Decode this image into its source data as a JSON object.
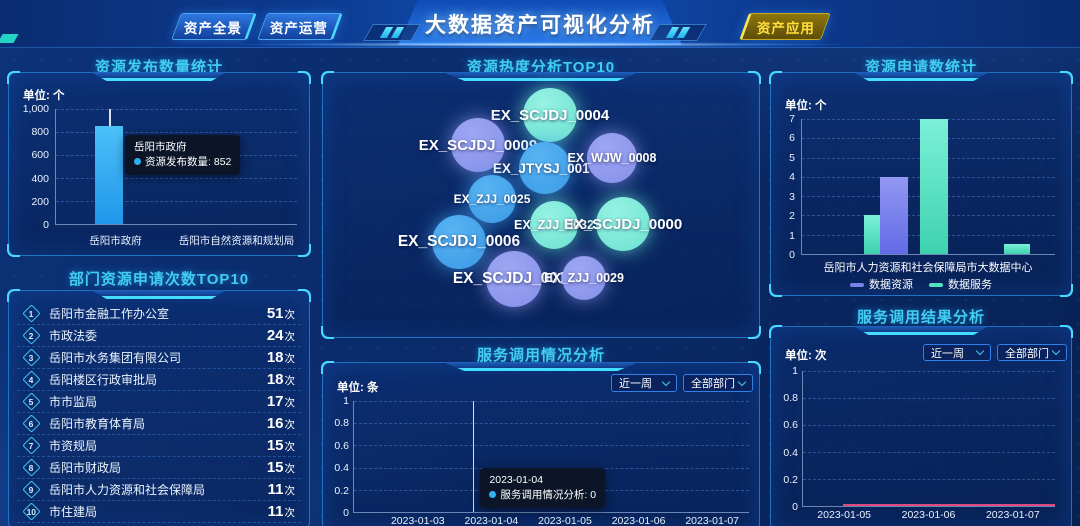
{
  "header": {
    "title": "大数据资产可视化分析",
    "tabs": [
      {
        "label": "资产全景"
      },
      {
        "label": "资产运营"
      }
    ],
    "right_tab": {
      "label": "资产应用"
    }
  },
  "panels": {
    "publish": {
      "title": "资源发布数量统计",
      "unit_label": "单位: 个",
      "y_ticks": [
        "1,000",
        "800",
        "600",
        "400",
        "200",
        "0"
      ],
      "categories": [
        "岳阳市政府",
        "岳阳市自然资源和规划局"
      ],
      "bar": {
        "value": 852,
        "max": 1000,
        "color": "#2ea9f1"
      },
      "tooltip": {
        "title": "岳阳市政府",
        "text": "资源发布数量: 852"
      }
    },
    "top10": {
      "title": "部门资源申请次数TOP10",
      "unit_suffix": "次",
      "items": [
        {
          "rank": "1",
          "name": "岳阳市金融工作办公室",
          "count": "51"
        },
        {
          "rank": "2",
          "name": "市政法委",
          "count": "24"
        },
        {
          "rank": "3",
          "name": "岳阳市水务集团有限公司",
          "count": "18"
        },
        {
          "rank": "4",
          "name": "岳阳楼区行政审批局",
          "count": "18"
        },
        {
          "rank": "5",
          "name": "市市监局",
          "count": "17"
        },
        {
          "rank": "6",
          "name": "岳阳市教育体育局",
          "count": "16"
        },
        {
          "rank": "7",
          "name": "市资规局",
          "count": "15"
        },
        {
          "rank": "8",
          "name": "岳阳市财政局",
          "count": "15"
        },
        {
          "rank": "9",
          "name": "岳阳市人力资源和社会保障局",
          "count": "11"
        },
        {
          "rank": "10",
          "name": "市住建局",
          "count": "11"
        }
      ]
    },
    "heat": {
      "title": "资源热度分析TOP10",
      "bubbles": [
        {
          "label": "EX_SCJDJ_0004",
          "color": "teal"
        },
        {
          "label": "EX_SCJDJ_0009",
          "color": "purple"
        },
        {
          "label": "EX_JTYSJ_0010",
          "color": "blue"
        },
        {
          "label": "EX_WJW_0008",
          "color": "purple"
        },
        {
          "label": "EX_ZJJ_0025",
          "color": "blue"
        },
        {
          "label": "EX_ZJJ_0032",
          "color": "teal"
        },
        {
          "label": "EX_SCJDJ_0000",
          "color": "teal"
        },
        {
          "label": "EX_SCJDJ_0006",
          "color": "blue"
        },
        {
          "label": "EX_SCJDJ_0010",
          "color": "purple"
        },
        {
          "label": "EX_ZJJ_0029",
          "color": "purple"
        }
      ]
    },
    "call": {
      "title": "服务调用情况分析",
      "unit_label": "单位: 条",
      "filters": [
        "近一周",
        "全部部门"
      ],
      "y_ticks": [
        "1",
        "0.8",
        "0.6",
        "0.4",
        "0.2",
        "0"
      ],
      "x_ticks": [
        "2023-01-03",
        "2023-01-04",
        "2023-01-05",
        "2023-01-06",
        "2023-01-07"
      ],
      "tooltip": {
        "title": "2023-01-04",
        "text": "服务调用情况分析: 0"
      }
    },
    "apply": {
      "title": "资源申请数统计",
      "unit_label": "单位: 个",
      "y_ticks": [
        "7",
        "6",
        "5",
        "4",
        "3",
        "2",
        "1",
        "0"
      ],
      "categories": [
        "岳阳市人力资源和社会保障局",
        "市大数据中心"
      ],
      "legend": [
        {
          "name": "数据资源",
          "color": "#7b83ea"
        },
        {
          "name": "数据服务",
          "color": "#52e2c0"
        }
      ],
      "bars": [
        {
          "series": "数据服务",
          "value": 2,
          "max": 7
        },
        {
          "series": "数据资源",
          "value": 4,
          "max": 7
        },
        {
          "series": "数据服务",
          "value": 7,
          "max": 7
        },
        {
          "series": "数据服务",
          "value": 0.5,
          "max": 7
        }
      ]
    },
    "result": {
      "title": "服务调用结果分析",
      "unit_label": "单位: 次",
      "filters": [
        "近一周",
        "全部部门"
      ],
      "y_ticks": [
        "1",
        "0.8",
        "0.6",
        "0.4",
        "0.2",
        "0"
      ],
      "x_ticks": [
        "2023-01-05",
        "2023-01-06",
        "2023-01-07"
      ],
      "line_color": "#dd4a80"
    }
  },
  "chart_data": [
    {
      "type": "bar",
      "title": "资源发布数量统计",
      "ylabel": "单位: 个",
      "categories": [
        "岳阳市政府",
        "岳阳市自然资源和规划局"
      ],
      "values": [
        852,
        0
      ],
      "ylim": [
        0,
        1000
      ],
      "tooltip": "岳阳市政府 资源发布数量: 852"
    },
    {
      "type": "table",
      "title": "部门资源申请次数TOP10",
      "rows": [
        [
          "1",
          "岳阳市金融工作办公室",
          "51次"
        ],
        [
          "2",
          "市政法委",
          "24次"
        ],
        [
          "3",
          "岳阳市水务集团有限公司",
          "18次"
        ],
        [
          "4",
          "岳阳楼区行政审批局",
          "18次"
        ],
        [
          "5",
          "市市监局",
          "17次"
        ],
        [
          "6",
          "岳阳市教育体育局",
          "16次"
        ],
        [
          "7",
          "市资规局",
          "15次"
        ],
        [
          "8",
          "岳阳市财政局",
          "15次"
        ],
        [
          "9",
          "岳阳市人力资源和社会保障局",
          "11次"
        ],
        [
          "10",
          "市住建局",
          "11次"
        ]
      ]
    },
    {
      "type": "scatter",
      "title": "资源热度分析TOP10",
      "labels": [
        "EX_SCJDJ_0004",
        "EX_SCJDJ_0009",
        "EX_JTYSJ_0010",
        "EX_WJW_0008",
        "EX_ZJJ_0025",
        "EX_ZJJ_0032",
        "EX_SCJDJ_0000",
        "EX_SCJDJ_0006",
        "EX_SCJDJ_0010",
        "EX_ZJJ_0029"
      ]
    },
    {
      "type": "line",
      "title": "服务调用情况分析",
      "ylabel": "单位: 条",
      "x": [
        "2023-01-03",
        "2023-01-04",
        "2023-01-05",
        "2023-01-06",
        "2023-01-07"
      ],
      "series": [
        {
          "name": "服务调用情况分析",
          "values": [
            null,
            0,
            null,
            null,
            null
          ]
        }
      ],
      "ylim": [
        0,
        1
      ],
      "filters": [
        "近一周",
        "全部部门"
      ]
    },
    {
      "type": "bar",
      "title": "资源申请数统计",
      "ylabel": "单位: 个",
      "categories": [
        "岳阳市人力资源和社会保障局",
        "市大数据中心"
      ],
      "bars": [
        {
          "series": "数据服务",
          "value": 2
        },
        {
          "series": "数据资源",
          "value": 4
        },
        {
          "series": "数据服务",
          "value": 7
        },
        {
          "series": "数据服务",
          "value": 0.5
        }
      ],
      "legend": [
        "数据资源",
        "数据服务"
      ],
      "ylim": [
        0,
        7
      ]
    },
    {
      "type": "line",
      "title": "服务调用结果分析",
      "ylabel": "单位: 次",
      "x": [
        "2023-01-05",
        "2023-01-06",
        "2023-01-07"
      ],
      "series": [
        {
          "name": "服务调用结果",
          "values": [
            0,
            0,
            0
          ]
        }
      ],
      "ylim": [
        0,
        1
      ],
      "filters": [
        "近一周",
        "全部部门"
      ]
    }
  ]
}
